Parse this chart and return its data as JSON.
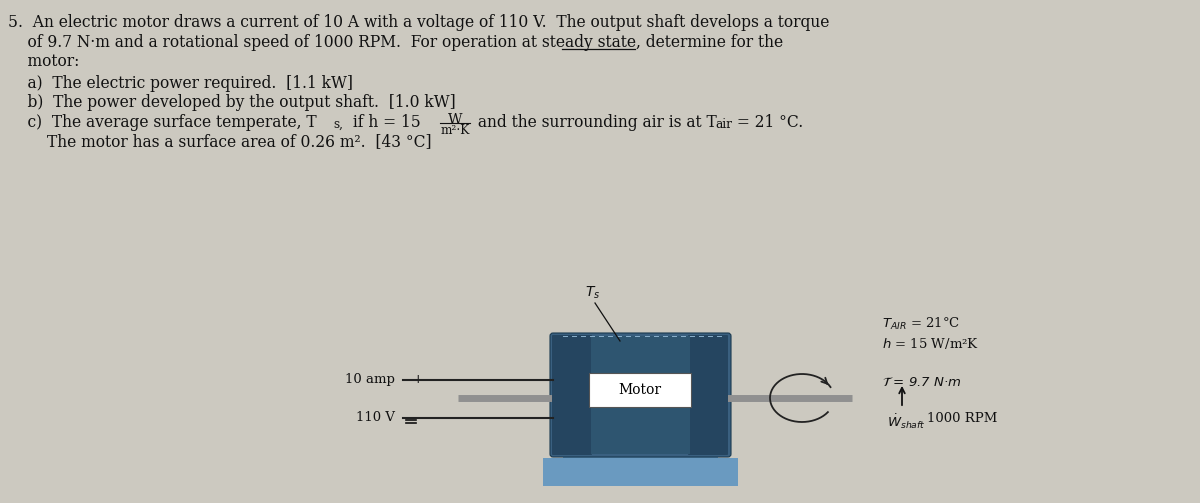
{
  "bg_color": "#ccc9c0",
  "text_color": "#111111",
  "font_size": 11.2,
  "line1": "5.  An electric motor draws a current of 10 A with a voltage of 110 V.  The output shaft develops a torque",
  "line2": "    of 9.7 N·m and a rotational speed of 1000 RPM.  For operation at steady state, determine for the",
  "line3": "    motor:",
  "line_a": "    a)  The electric power required.  [1.1 kW]",
  "line_b": "    b)  The power developed by the output shaft.  [1.0 kW]",
  "line_c1": "    c)  The average surface temperate, T",
  "line_c2": "if h = 15",
  "line_c3": "and the surrounding air is at T",
  "line_c4": " = 21 °C.",
  "line_d": "        The motor has a surface area of 0.26 m².  [43 °C]",
  "motor_body_color": "#3a6080",
  "motor_dark_color": "#254560",
  "motor_mid_color": "#2e5570",
  "motor_base_color": "#5a8ab0",
  "motor_base_color2": "#6a9ac0",
  "shaft_color": "#909090",
  "wire_color": "#222222",
  "motor_label_bg": "#ffffff"
}
